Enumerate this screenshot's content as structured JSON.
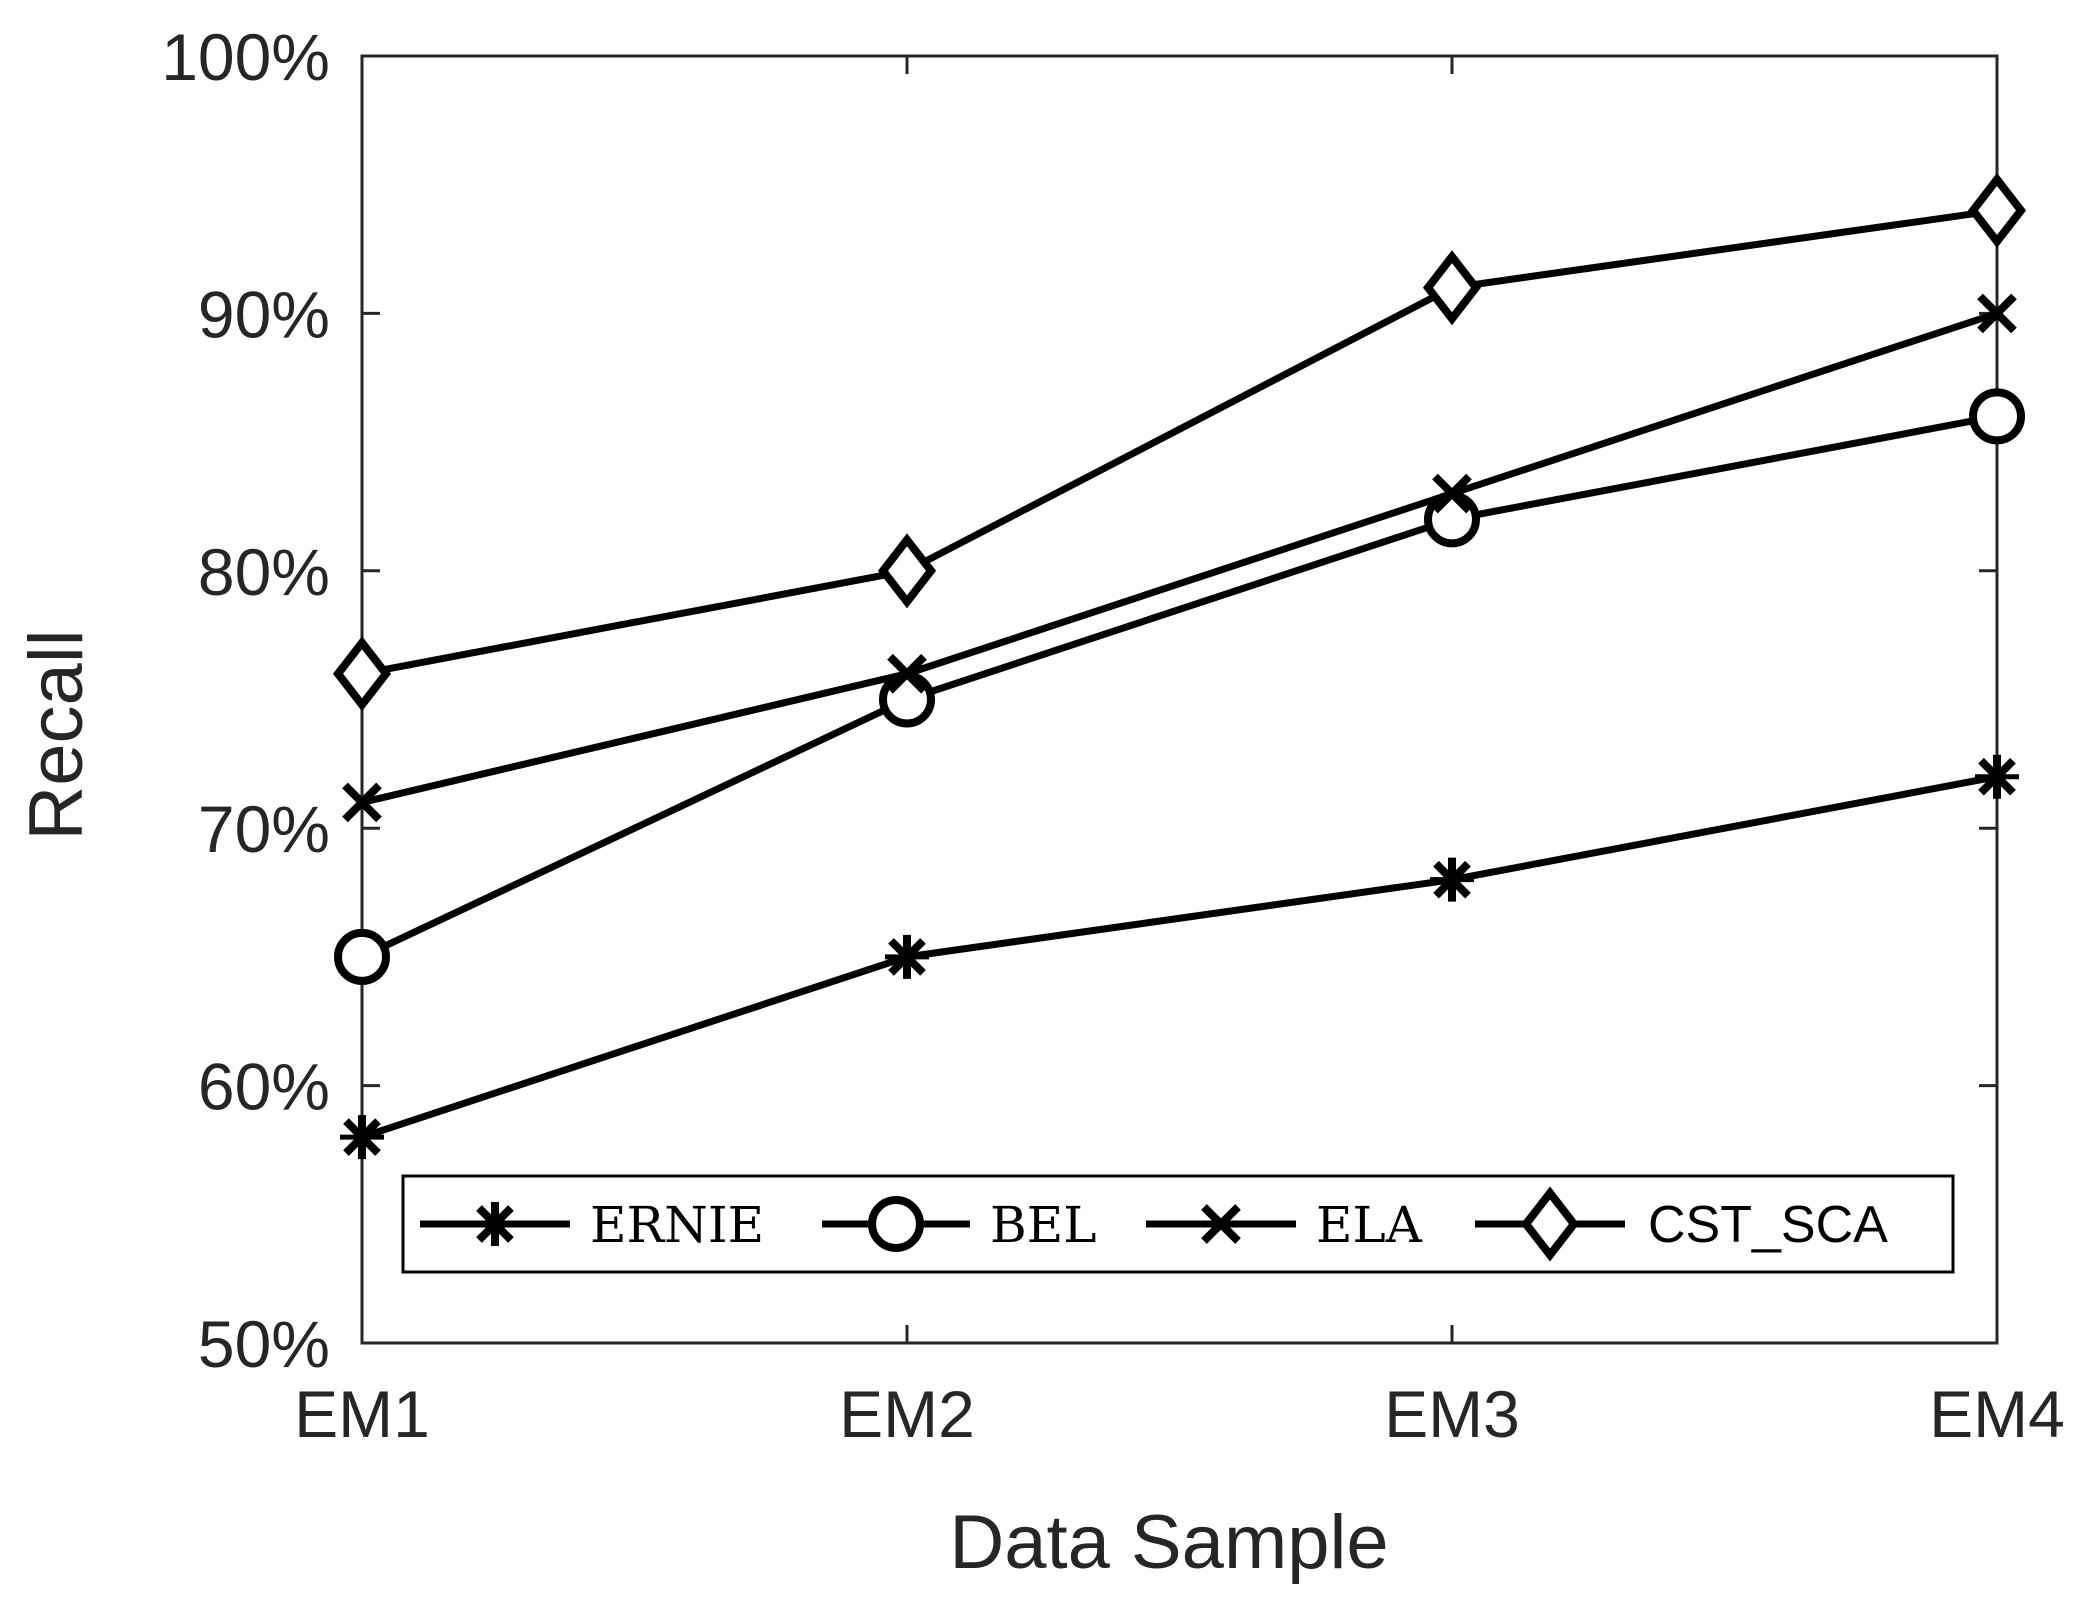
{
  "chart_data": {
    "type": "line",
    "title": "",
    "xlabel": "Data Sample",
    "ylabel": "Recall",
    "categories": [
      "EM1",
      "EM2",
      "EM3",
      "EM4"
    ],
    "ylim": [
      50,
      100
    ],
    "yticks": [
      50,
      60,
      70,
      80,
      90,
      100
    ],
    "ytick_labels": [
      "50%",
      "60%",
      "70%",
      "80%",
      "90%",
      "100%"
    ],
    "grid": false,
    "legend_position": "bottom",
    "series": [
      {
        "name": "ERNIE",
        "marker": "asterisk",
        "values": [
          58,
          65,
          68,
          72
        ]
      },
      {
        "name": "BEL",
        "marker": "circle",
        "values": [
          65,
          75,
          82,
          86
        ]
      },
      {
        "name": "ELA",
        "marker": "x",
        "values": [
          71,
          76,
          83,
          90
        ]
      },
      {
        "name": "CST_SCA",
        "marker": "diamond",
        "values": [
          76,
          80,
          91,
          94
        ]
      }
    ],
    "line_color": "#000000",
    "axis_color": "#262626"
  }
}
